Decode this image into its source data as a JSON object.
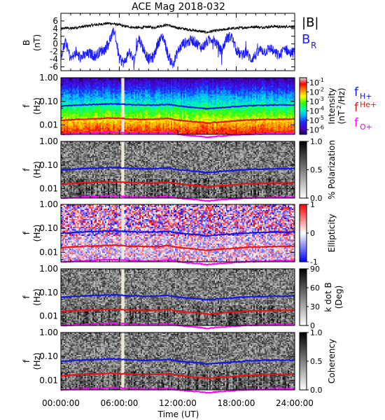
{
  "chart_data": {
    "type": "spectrogram-panels",
    "title": "ACE Mag 2018-032",
    "xlabel": "Time (UT)",
    "x_ticks": [
      "00:00:00",
      "06:00:00",
      "12:00:00",
      "18:00:00",
      "24:00:00"
    ],
    "xlim_hours": [
      0,
      24
    ],
    "data_gap_hours": [
      6.2,
      6.45
    ],
    "panels": [
      {
        "id": "mag",
        "type": "line",
        "ylabel": "B",
        "yunit": "(nT)",
        "ylim": [
          -7,
          8
        ],
        "y_ticks": [
          "6",
          "4",
          "2",
          "0",
          "-2",
          "-4",
          "-6"
        ],
        "y_tick_values": [
          6,
          4,
          2,
          0,
          -2,
          -4,
          -6
        ],
        "series": [
          {
            "name": "|B|",
            "color": "#000000",
            "x": [
              0,
              0.5,
              1,
              1.5,
              2,
              2.5,
              3,
              3.5,
              4,
              4.5,
              5,
              5.5,
              6,
              6.5,
              7,
              7.5,
              8,
              8.5,
              9,
              9.5,
              10,
              10.5,
              11,
              11.5,
              12,
              12.5,
              13,
              13.5,
              14,
              14.5,
              15,
              15.5,
              16,
              16.5,
              17,
              17.5,
              18,
              18.5,
              19,
              19.5,
              20,
              20.5,
              21,
              21.5,
              22,
              22.5,
              23,
              23.5,
              24
            ],
            "values": [
              3.8,
              4.2,
              4.0,
              4.3,
              4.4,
              4.6,
              4.8,
              5.0,
              5.1,
              5.3,
              5.4,
              5.2,
              5.0,
              4.6,
              4.5,
              4.3,
              4.2,
              4.3,
              4.5,
              4.2,
              4.6,
              4.8,
              5.0,
              4.4,
              4.2,
              4.0,
              3.8,
              3.6,
              3.4,
              3.2,
              3.0,
              3.3,
              3.5,
              3.6,
              3.9,
              4.0,
              4.1,
              4.2,
              4.3,
              4.4,
              4.5,
              4.3,
              4.4,
              4.5,
              4.6,
              4.4,
              4.5,
              4.6,
              4.5
            ]
          },
          {
            "name": "B",
            "subscript": "R",
            "color": "#1a1aff",
            "x": [
              0,
              0.5,
              1,
              1.5,
              2,
              2.5,
              3,
              3.5,
              4,
              4.5,
              5,
              5.5,
              6,
              6.5,
              7,
              7.5,
              8,
              8.5,
              9,
              9.5,
              10,
              10.5,
              11,
              11.5,
              12,
              12.5,
              13,
              13.5,
              14,
              14.5,
              15,
              15.5,
              16,
              16.5,
              17,
              17.5,
              18,
              18.5,
              19,
              19.5,
              20,
              20.5,
              21,
              21.5,
              22,
              22.5,
              23,
              23.5,
              24
            ],
            "values": [
              -3.0,
              0.5,
              -4.0,
              -2.5,
              -3.5,
              -3.0,
              -2.5,
              -3.2,
              -2.0,
              -1.5,
              1.0,
              3.5,
              -4.0,
              -5.0,
              -2.0,
              -4.5,
              1.5,
              -1.5,
              -4.0,
              -3.5,
              0.5,
              2.0,
              -3.0,
              -5.5,
              -2.0,
              0.0,
              0.5,
              1.0,
              0.0,
              -1.0,
              0.5,
              1.5,
              0.0,
              -2.0,
              1.5,
              2.0,
              -1.5,
              -3.0,
              -2.0,
              -4.0,
              -3.0,
              -1.5,
              -2.0,
              -1.0,
              -2.5,
              -3.0,
              -1.0,
              -2.5,
              -2.0
            ]
          }
        ]
      },
      {
        "id": "intensity",
        "type": "heatmap",
        "ylabel": "f",
        "yunit": "(Hz)",
        "ylim_log10": [
          -2.4,
          0
        ],
        "y_ticks": [
          "1.00",
          "0.10",
          "0.01"
        ],
        "colorbar": {
          "label": "Intensity",
          "unit_pre": "(nT",
          "unit_sup": "2",
          "unit_post": "/Hz)",
          "colors": [
            "#20006a",
            "#4b00c8",
            "#1e2cff",
            "#00b4ff",
            "#00ffb0",
            "#30ff00",
            "#ffff00",
            "#ff8c00",
            "#ff0000",
            "#e0e0e0"
          ],
          "tick_exponents": [
            "-1",
            "-2",
            "-3",
            "-4",
            "-5",
            "-6"
          ],
          "tick_values": [
            -1,
            -2,
            -3,
            -4,
            -5,
            -6
          ],
          "range": [
            -6.5,
            -0.5
          ]
        },
        "style": "intensity"
      },
      {
        "id": "polarization",
        "type": "heatmap",
        "ylabel": "f",
        "yunit": "(Hz)",
        "ylim_log10": [
          -2.4,
          0
        ],
        "y_ticks": [
          "1.00",
          "0.10",
          "0.01"
        ],
        "colorbar": {
          "label": "% Polarization",
          "colors": [
            "#ffffff",
            "#000000"
          ],
          "ticks": [
            "1.0",
            "0.5",
            "0.0"
          ],
          "tick_values": [
            1.0,
            0.5,
            0.0
          ],
          "range": [
            0,
            1
          ]
        },
        "style": "gray"
      },
      {
        "id": "ellipticity",
        "type": "heatmap",
        "ylabel": "f",
        "yunit": "(Hz)",
        "ylim_log10": [
          -2.4,
          0
        ],
        "y_ticks": [
          "1.00",
          "0.10",
          "0.01"
        ],
        "colorbar": {
          "label": "Ellipticity",
          "colors": [
            "#0000ff",
            "#ffffff",
            "#ff0000"
          ],
          "ticks": [
            "1",
            "0",
            "-1"
          ],
          "tick_values": [
            1,
            0,
            -1
          ],
          "range": [
            -1,
            1
          ]
        },
        "style": "bwr"
      },
      {
        "id": "kdotb",
        "type": "heatmap",
        "ylabel": "f",
        "yunit": "(Hz)",
        "ylim_log10": [
          -2.4,
          0
        ],
        "y_ticks": [
          "1.00",
          "0.10",
          "0.01"
        ],
        "colorbar": {
          "label": "k dot B",
          "label2": "(Deg)",
          "colors": [
            "#ffffff",
            "#000000"
          ],
          "ticks": [
            "90",
            "60",
            "30",
            "0"
          ],
          "tick_values": [
            90,
            60,
            30,
            0
          ],
          "range": [
            0,
            90
          ]
        },
        "style": "gray"
      },
      {
        "id": "coherency",
        "type": "heatmap",
        "ylabel": "f",
        "yunit": "(Hz)",
        "ylim_log10": [
          -2.4,
          0
        ],
        "y_ticks": [
          "1.00",
          "0.10",
          "0.01"
        ],
        "colorbar": {
          "label": "Coherency",
          "colors": [
            "#ffffff",
            "#000000"
          ],
          "ticks": [
            "1.0",
            "0.5",
            "0.0"
          ],
          "tick_values": [
            1.0,
            0.5,
            0.0
          ],
          "range": [
            0,
            1
          ]
        },
        "style": "gray"
      }
    ],
    "gyro_lines": [
      {
        "name": "f",
        "subscript": "H+",
        "color": "#1414e6",
        "x": [
          0,
          1,
          2,
          3,
          4,
          5,
          6,
          7,
          8,
          9,
          10,
          11,
          12,
          13,
          14,
          15,
          16,
          17,
          18,
          19,
          20,
          21,
          22,
          23,
          24
        ],
        "values": [
          0.062,
          0.066,
          0.07,
          0.072,
          0.075,
          0.078,
          0.077,
          0.072,
          0.07,
          0.069,
          0.071,
          0.075,
          0.064,
          0.058,
          0.054,
          0.048,
          0.052,
          0.056,
          0.06,
          0.064,
          0.066,
          0.068,
          0.07,
          0.07,
          0.071
        ]
      },
      {
        "name": "f",
        "subscript": "He+",
        "color": "#e61414",
        "x": [
          0,
          1,
          2,
          3,
          4,
          5,
          6,
          7,
          8,
          9,
          10,
          11,
          12,
          13,
          14,
          15,
          16,
          17,
          18,
          19,
          20,
          21,
          22,
          23,
          24
        ],
        "values": [
          0.0155,
          0.0165,
          0.0175,
          0.018,
          0.0188,
          0.0195,
          0.0193,
          0.018,
          0.0175,
          0.0172,
          0.0178,
          0.0188,
          0.016,
          0.0145,
          0.0135,
          0.012,
          0.013,
          0.014,
          0.015,
          0.016,
          0.0165,
          0.017,
          0.0175,
          0.0175,
          0.0178
        ]
      },
      {
        "name": "f",
        "subscript": "O+",
        "color": "#ff00ff",
        "x": [
          0,
          1,
          2,
          3,
          4,
          5,
          6,
          7,
          8,
          9,
          10,
          11,
          12,
          13,
          14,
          15,
          16,
          17,
          18,
          19,
          20,
          21,
          22,
          23,
          24
        ],
        "values": [
          0.0039,
          0.0041,
          0.0044,
          0.0045,
          0.0047,
          0.0049,
          0.0048,
          0.0045,
          0.0044,
          0.0043,
          0.0044,
          0.0047,
          0.004,
          0.0036,
          0.0034,
          0.003,
          0.0033,
          0.0035,
          0.0038,
          0.004,
          0.0041,
          0.0042,
          0.0044,
          0.0044,
          0.0044
        ]
      }
    ]
  }
}
